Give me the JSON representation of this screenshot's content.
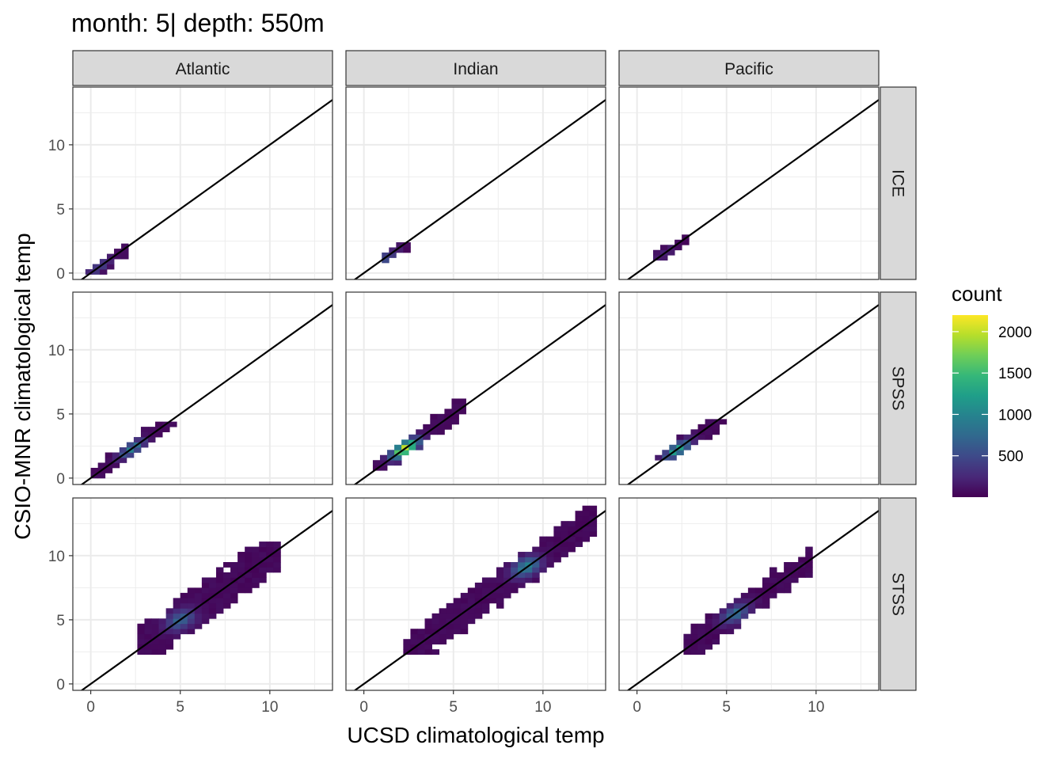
{
  "chart_data": {
    "type": "heatmap",
    "title": "month: 5| depth: 550m",
    "xlabel": "UCSD climatological temp",
    "ylabel": "CSIO-MNR climatological temp",
    "xlim": [
      -1,
      13.5
    ],
    "ylim": [
      -0.5,
      14.5
    ],
    "x_ticks": [
      0,
      5,
      10
    ],
    "y_ticks": [
      0,
      5,
      10
    ],
    "grid": true,
    "reference_line": {
      "slope": 1,
      "intercept": 0
    },
    "facet_columns": [
      "Atlantic",
      "Indian",
      "Pacific"
    ],
    "facet_rows": [
      "ICE",
      "SPSS",
      "STSS"
    ],
    "legend": {
      "title": "count",
      "position": "right",
      "range": [
        0,
        2200
      ],
      "ticks": [
        500,
        1000,
        1500,
        2000
      ],
      "colors": [
        "#440154",
        "#482878",
        "#3e4989",
        "#31688e",
        "#26828e",
        "#1f9e89",
        "#35b779",
        "#6ece58",
        "#b5de2b",
        "#fde725"
      ]
    },
    "bin_width": 0.4,
    "panels": [
      {
        "column": "Atlantic",
        "row": "ICE",
        "x_range": [
          -0.3,
          2.0
        ],
        "y_range": [
          -0.1,
          2.1
        ],
        "spread": 0.5,
        "peak": [
          0.5,
          0.5,
          450
        ]
      },
      {
        "column": "Indian",
        "row": "ICE",
        "x_range": [
          1.0,
          2.2
        ],
        "y_range": [
          0.0,
          2.1
        ],
        "spread": 0.5,
        "peak": [
          1.3,
          1.0,
          600
        ]
      },
      {
        "column": "Pacific",
        "row": "ICE",
        "x_range": [
          0.9,
          2.6
        ],
        "y_range": [
          1.0,
          2.6
        ],
        "spread": 0.45,
        "peak": [
          1.5,
          1.6,
          200
        ]
      },
      {
        "column": "Atlantic",
        "row": "SPSS",
        "x_range": [
          0.0,
          4.6
        ],
        "y_range": [
          0.0,
          4.3
        ],
        "spread": 0.6,
        "peak": [
          2.3,
          2.3,
          900
        ]
      },
      {
        "column": "Indian",
        "row": "SPSS",
        "x_range": [
          0.5,
          5.4
        ],
        "y_range": [
          0.6,
          6.5
        ],
        "spread": 0.7,
        "peak": [
          2.3,
          2.3,
          2200
        ]
      },
      {
        "column": "Pacific",
        "row": "SPSS",
        "x_range": [
          1.0,
          4.7
        ],
        "y_range": [
          1.4,
          4.6
        ],
        "spread": 0.6,
        "peak": [
          2.3,
          2.2,
          1300
        ]
      },
      {
        "column": "Atlantic",
        "row": "STSS",
        "x_range": [
          2.6,
          10.3
        ],
        "y_range": [
          2.3,
          11.1
        ],
        "spread": 1.4,
        "peak": [
          5.0,
          5.0,
          700
        ]
      },
      {
        "column": "Indian",
        "row": "STSS",
        "x_range": [
          2.2,
          12.8
        ],
        "y_range": [
          2.3,
          13.8
        ],
        "spread": 1.2,
        "peak": [
          9.0,
          9.2,
          1000
        ]
      },
      {
        "column": "Pacific",
        "row": "STSS",
        "x_range": [
          2.6,
          9.5
        ],
        "y_range": [
          2.3,
          10.4
        ],
        "spread": 1.0,
        "peak": [
          5.5,
          5.5,
          800
        ]
      }
    ]
  }
}
